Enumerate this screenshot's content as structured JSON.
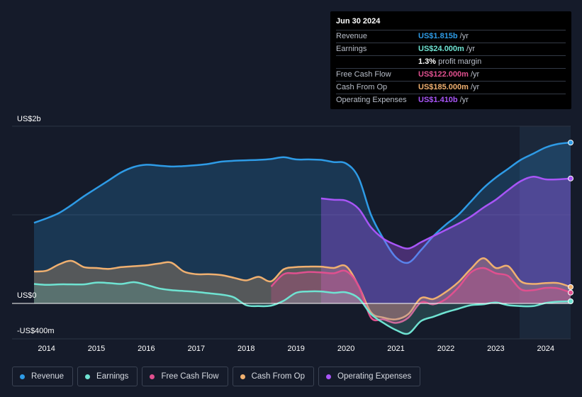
{
  "tooltip": {
    "date": "Jun 30 2024",
    "rows": [
      {
        "label": "Revenue",
        "value": "US$1.815b",
        "unit": "/yr",
        "color": "#2e9be6"
      },
      {
        "label": "Earnings",
        "value": "US$24.000m",
        "unit": "/yr",
        "color": "#6fe3d2"
      },
      {
        "label": "",
        "value": "1.3%",
        "unit": "profit margin",
        "color": "#ffffff"
      },
      {
        "label": "Free Cash Flow",
        "value": "US$122.000m",
        "unit": "/yr",
        "color": "#e0508f"
      },
      {
        "label": "Cash From Op",
        "value": "US$185.000m",
        "unit": "/yr",
        "color": "#f0b070"
      },
      {
        "label": "Operating Expenses",
        "value": "US$1.410b",
        "unit": "/yr",
        "color": "#a855f7"
      }
    ]
  },
  "legend": [
    {
      "label": "Revenue",
      "color": "#2e9be6"
    },
    {
      "label": "Earnings",
      "color": "#6fe3d2"
    },
    {
      "label": "Free Cash Flow",
      "color": "#e0508f"
    },
    {
      "label": "Cash From Op",
      "color": "#f0b070"
    },
    {
      "label": "Operating Expenses",
      "color": "#a855f7"
    }
  ],
  "chart_data": {
    "type": "area",
    "title": "",
    "xlabel": "",
    "ylabel": "",
    "y_tick_labels": [
      "US$2b",
      "US$0",
      "-US$400m"
    ],
    "x_tick_labels": [
      "2014",
      "2015",
      "2016",
      "2017",
      "2018",
      "2019",
      "2020",
      "2021",
      "2022",
      "2023",
      "2024"
    ],
    "xlim": [
      2013.75,
      2024.5
    ],
    "ylim": [
      -400,
      2000
    ],
    "units": "US$ millions",
    "forecast_start": 2023.5,
    "series": [
      {
        "name": "Revenue",
        "color": "#2e9be6",
        "x": [
          2013.75,
          2014.0,
          2014.25,
          2014.5,
          2014.75,
          2015.0,
          2015.25,
          2015.5,
          2015.75,
          2016.0,
          2016.25,
          2016.5,
          2016.75,
          2017.0,
          2017.25,
          2017.5,
          2017.75,
          2018.0,
          2018.25,
          2018.5,
          2018.75,
          2019.0,
          2019.25,
          2019.5,
          2019.75,
          2020.0,
          2020.25,
          2020.5,
          2020.75,
          2021.0,
          2021.25,
          2021.5,
          2021.75,
          2022.0,
          2022.25,
          2022.5,
          2022.75,
          2023.0,
          2023.25,
          2023.5,
          2023.75,
          2024.0,
          2024.25,
          2024.5
        ],
        "values": [
          910,
          960,
          1020,
          1110,
          1210,
          1300,
          1390,
          1480,
          1540,
          1565,
          1555,
          1545,
          1550,
          1560,
          1575,
          1600,
          1610,
          1615,
          1620,
          1630,
          1650,
          1625,
          1625,
          1620,
          1595,
          1580,
          1420,
          1000,
          730,
          520,
          460,
          600,
          760,
          890,
          1000,
          1150,
          1300,
          1420,
          1520,
          1620,
          1690,
          1760,
          1800,
          1815
        ]
      },
      {
        "name": "Earnings",
        "color": "#6fe3d2",
        "x": [
          2013.75,
          2014.0,
          2014.25,
          2014.5,
          2014.75,
          2015.0,
          2015.25,
          2015.5,
          2015.75,
          2016.0,
          2016.25,
          2016.5,
          2016.75,
          2017.0,
          2017.25,
          2017.5,
          2017.75,
          2018.0,
          2018.25,
          2018.5,
          2018.75,
          2019.0,
          2019.25,
          2019.5,
          2019.75,
          2020.0,
          2020.25,
          2020.5,
          2020.75,
          2021.0,
          2021.25,
          2021.5,
          2021.75,
          2022.0,
          2022.25,
          2022.5,
          2022.75,
          2023.0,
          2023.25,
          2023.5,
          2023.75,
          2024.0,
          2024.25,
          2024.5
        ],
        "values": [
          220,
          210,
          215,
          215,
          215,
          235,
          230,
          220,
          240,
          210,
          170,
          150,
          140,
          130,
          115,
          100,
          70,
          -20,
          -30,
          -25,
          30,
          120,
          135,
          135,
          120,
          125,
          60,
          -120,
          -220,
          -300,
          -340,
          -200,
          -150,
          -100,
          -60,
          -20,
          -10,
          10,
          -20,
          -30,
          -30,
          5,
          20,
          24
        ]
      },
      {
        "name": "Free Cash Flow",
        "color": "#e0508f",
        "x": [
          2018.5,
          2018.75,
          2019.0,
          2019.25,
          2019.5,
          2019.75,
          2020.0,
          2020.25,
          2020.5,
          2020.75,
          2021.0,
          2021.25,
          2021.5,
          2021.75,
          2022.0,
          2022.25,
          2022.5,
          2022.75,
          2023.0,
          2023.25,
          2023.5,
          2023.75,
          2024.0,
          2024.25,
          2024.5
        ],
        "values": [
          190,
          330,
          340,
          355,
          350,
          340,
          365,
          200,
          -160,
          -180,
          -220,
          -160,
          10,
          -10,
          50,
          180,
          350,
          400,
          340,
          310,
          160,
          150,
          175,
          170,
          122
        ]
      },
      {
        "name": "Cash From Op",
        "color": "#f0b070",
        "x": [
          2013.75,
          2014.0,
          2014.25,
          2014.5,
          2014.75,
          2015.0,
          2015.25,
          2015.5,
          2015.75,
          2016.0,
          2016.25,
          2016.5,
          2016.75,
          2017.0,
          2017.25,
          2017.5,
          2017.75,
          2018.0,
          2018.25,
          2018.5,
          2018.75,
          2019.0,
          2019.25,
          2019.5,
          2019.75,
          2020.0,
          2020.25,
          2020.5,
          2020.75,
          2021.0,
          2021.25,
          2021.5,
          2021.75,
          2022.0,
          2022.25,
          2022.5,
          2022.75,
          2023.0,
          2023.25,
          2023.5,
          2023.75,
          2024.0,
          2024.25,
          2024.5
        ],
        "values": [
          360,
          370,
          440,
          480,
          410,
          400,
          390,
          410,
          420,
          430,
          450,
          460,
          360,
          330,
          330,
          320,
          290,
          260,
          300,
          250,
          385,
          410,
          415,
          415,
          400,
          420,
          200,
          -100,
          -160,
          -180,
          -120,
          60,
          50,
          130,
          240,
          390,
          510,
          400,
          420,
          250,
          220,
          230,
          230,
          185
        ]
      },
      {
        "name": "Operating Expenses",
        "color": "#a855f7",
        "x": [
          2019.5,
          2019.75,
          2020.0,
          2020.25,
          2020.5,
          2020.75,
          2021.0,
          2021.25,
          2021.5,
          2021.75,
          2022.0,
          2022.25,
          2022.5,
          2022.75,
          2023.0,
          2023.25,
          2023.5,
          2023.75,
          2024.0,
          2024.25,
          2024.5
        ],
        "values": [
          1185,
          1170,
          1160,
          1070,
          860,
          730,
          660,
          620,
          690,
          760,
          830,
          900,
          980,
          1080,
          1170,
          1280,
          1380,
          1430,
          1400,
          1400,
          1410
        ]
      }
    ]
  }
}
